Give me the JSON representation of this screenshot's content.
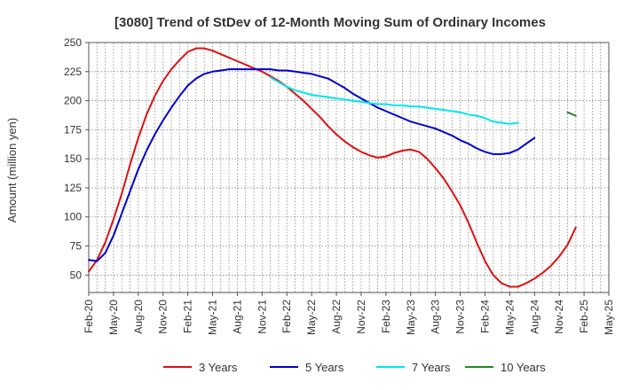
{
  "chart_data": {
    "type": "line",
    "title": "[3080]  Trend of StDev of 12-Month Moving Sum of Ordinary Incomes",
    "xlabel": "",
    "ylabel": "Amount (million yen)",
    "ylim": [
      35,
      250
    ],
    "yticks": [
      50,
      75,
      100,
      125,
      150,
      175,
      200,
      225,
      250
    ],
    "xtick_labels": [
      "Feb-20",
      "May-20",
      "Aug-20",
      "Nov-20",
      "Feb-21",
      "May-21",
      "Aug-21",
      "Nov-21",
      "Feb-22",
      "May-22",
      "Aug-22",
      "Nov-22",
      "Feb-23",
      "May-23",
      "Aug-23",
      "Nov-23",
      "Feb-24",
      "May-24",
      "Aug-24",
      "Nov-24",
      "Feb-25",
      "May-25"
    ],
    "x_count": 64,
    "grid": true,
    "legend_position": "bottom",
    "series": [
      {
        "name": "3 Years",
        "color": "#dd1111",
        "start_index": 0,
        "values": [
          53,
          63,
          78,
          98,
          120,
          145,
          168,
          188,
          204,
          217,
          227,
          235,
          242,
          245,
          245,
          243,
          240,
          237,
          234,
          231,
          228,
          225,
          221,
          217,
          212,
          206,
          200,
          193,
          186,
          178,
          171,
          165,
          160,
          156,
          153,
          151,
          152,
          155,
          157,
          158,
          156,
          150,
          142,
          133,
          122,
          110,
          95,
          78,
          62,
          50,
          43,
          40,
          40,
          43,
          47,
          52,
          58,
          66,
          76,
          91
        ]
      },
      {
        "name": "5 Years",
        "color": "#0000cc",
        "start_index": 0,
        "values": [
          63,
          62,
          69,
          84,
          103,
          122,
          141,
          157,
          171,
          183,
          194,
          204,
          213,
          219,
          223,
          225,
          226,
          227,
          227,
          227,
          227,
          227,
          227,
          226,
          226,
          225,
          224,
          223,
          221,
          219,
          215,
          211,
          206,
          202,
          198,
          194,
          191,
          188,
          185,
          182,
          180,
          178,
          176,
          173,
          170,
          166,
          163,
          159,
          156,
          154,
          154,
          155,
          158,
          163,
          168
        ]
      },
      {
        "name": "7 Years",
        "color": "#00e5ee",
        "start_index": 22,
        "values": [
          220,
          216,
          212,
          209,
          207,
          205,
          204,
          203,
          202,
          201,
          200,
          199,
          198,
          197,
          197,
          196,
          196,
          195,
          195,
          194,
          193,
          192,
          191,
          190,
          188,
          187,
          185,
          182,
          181,
          180,
          181
        ]
      },
      {
        "name": "10 Years",
        "color": "#228822",
        "start_index": 58,
        "values": [
          190,
          187
        ]
      }
    ]
  }
}
